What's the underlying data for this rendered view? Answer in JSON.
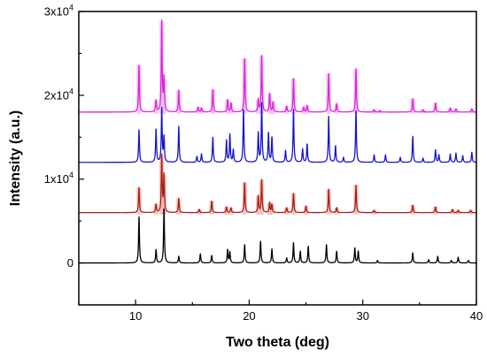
{
  "chart_data": {
    "type": "line",
    "title": "",
    "xlabel": "Two theta (deg)",
    "ylabel": "Intensity (a.u.)",
    "xlim": [
      5,
      40
    ],
    "ylim": [
      -5000,
      30000
    ],
    "grid": false,
    "legend": "none",
    "x_ticks": [
      10,
      20,
      30,
      40
    ],
    "x_tick_labels": [
      "10",
      "20",
      "30",
      "40"
    ],
    "y_ticks": [
      {
        "value": 0,
        "label": "0",
        "exp": ""
      },
      {
        "value": 10000,
        "label": "1x10",
        "exp": "4"
      },
      {
        "value": 20000,
        "label": "2x10",
        "exp": "4"
      },
      {
        "value": 30000,
        "label": "3x10",
        "exp": "4"
      }
    ],
    "series": [
      {
        "color": "#000000",
        "highlight": "",
        "baseline": 0,
        "peaks": [
          [
            10.3,
            5500
          ],
          [
            11.8,
            1600
          ],
          [
            12.5,
            6600
          ],
          [
            13.8,
            800
          ],
          [
            15.7,
            1100
          ],
          [
            16.7,
            900
          ],
          [
            18.1,
            1600
          ],
          [
            18.3,
            1300
          ],
          [
            19.6,
            2200
          ],
          [
            21.0,
            2600
          ],
          [
            22.0,
            1700
          ],
          [
            23.3,
            600
          ],
          [
            23.9,
            2400
          ],
          [
            24.5,
            1400
          ],
          [
            25.2,
            2000
          ],
          [
            26.8,
            2200
          ],
          [
            27.7,
            1400
          ],
          [
            29.3,
            1800
          ],
          [
            29.6,
            1400
          ],
          [
            31.3,
            300
          ],
          [
            34.4,
            1200
          ],
          [
            35.8,
            400
          ],
          [
            36.6,
            800
          ],
          [
            37.8,
            300
          ],
          [
            38.4,
            700
          ],
          [
            39.3,
            300
          ]
        ]
      },
      {
        "color": "#aa1f14",
        "highlight": "#f2b0a8",
        "baseline": 6000,
        "peaks": [
          [
            10.3,
            3000
          ],
          [
            11.8,
            1000
          ],
          [
            12.3,
            6800
          ],
          [
            12.5,
            4500
          ],
          [
            13.8,
            1700
          ],
          [
            15.6,
            400
          ],
          [
            16.7,
            1400
          ],
          [
            18.0,
            700
          ],
          [
            18.4,
            600
          ],
          [
            19.6,
            3600
          ],
          [
            20.8,
            2000
          ],
          [
            21.1,
            3900
          ],
          [
            21.8,
            1200
          ],
          [
            22.0,
            1000
          ],
          [
            23.3,
            600
          ],
          [
            23.9,
            2300
          ],
          [
            25.0,
            800
          ],
          [
            27.0,
            2800
          ],
          [
            27.7,
            600
          ],
          [
            29.4,
            3300
          ],
          [
            31.0,
            300
          ],
          [
            34.4,
            900
          ],
          [
            36.4,
            700
          ],
          [
            37.9,
            400
          ],
          [
            38.4,
            300
          ],
          [
            39.5,
            300
          ]
        ]
      },
      {
        "color": "#1414cc",
        "highlight": "",
        "baseline": 12000,
        "peaks": [
          [
            10.3,
            3900
          ],
          [
            11.8,
            4000
          ],
          [
            12.3,
            6400
          ],
          [
            12.5,
            3000
          ],
          [
            13.8,
            4300
          ],
          [
            15.4,
            700
          ],
          [
            15.8,
            1000
          ],
          [
            16.8,
            3000
          ],
          [
            18.0,
            2600
          ],
          [
            18.3,
            3300
          ],
          [
            18.6,
            1500
          ],
          [
            19.5,
            6400
          ],
          [
            20.8,
            3500
          ],
          [
            21.1,
            7000
          ],
          [
            21.7,
            3500
          ],
          [
            22.0,
            3000
          ],
          [
            23.2,
            1400
          ],
          [
            23.9,
            6300
          ],
          [
            24.7,
            1600
          ],
          [
            25.1,
            2200
          ],
          [
            27.0,
            5500
          ],
          [
            27.6,
            2000
          ],
          [
            28.3,
            600
          ],
          [
            29.4,
            6200
          ],
          [
            31.0,
            900
          ],
          [
            32.0,
            900
          ],
          [
            33.3,
            600
          ],
          [
            34.4,
            3100
          ],
          [
            35.3,
            500
          ],
          [
            36.4,
            1500
          ],
          [
            36.7,
            900
          ],
          [
            37.7,
            1000
          ],
          [
            38.2,
            1100
          ],
          [
            38.8,
            800
          ],
          [
            39.6,
            1200
          ]
        ]
      },
      {
        "color": "#dd22dd",
        "highlight": "#f3b6f3",
        "baseline": 18000,
        "peaks": [
          [
            10.3,
            5600
          ],
          [
            11.8,
            1400
          ],
          [
            12.3,
            10800
          ],
          [
            12.5,
            4000
          ],
          [
            13.8,
            2600
          ],
          [
            15.5,
            600
          ],
          [
            15.8,
            500
          ],
          [
            16.8,
            2700
          ],
          [
            18.1,
            1500
          ],
          [
            18.4,
            1100
          ],
          [
            19.6,
            6400
          ],
          [
            20.8,
            1500
          ],
          [
            21.1,
            6700
          ],
          [
            21.8,
            2200
          ],
          [
            22.1,
            1200
          ],
          [
            23.3,
            700
          ],
          [
            23.9,
            4000
          ],
          [
            24.8,
            600
          ],
          [
            25.1,
            800
          ],
          [
            27.0,
            4600
          ],
          [
            27.7,
            1000
          ],
          [
            29.4,
            5200
          ],
          [
            31.0,
            300
          ],
          [
            31.5,
            200
          ],
          [
            34.4,
            1600
          ],
          [
            35.3,
            300
          ],
          [
            36.4,
            1100
          ],
          [
            37.7,
            500
          ],
          [
            38.2,
            400
          ],
          [
            39.6,
            400
          ]
        ]
      }
    ]
  }
}
